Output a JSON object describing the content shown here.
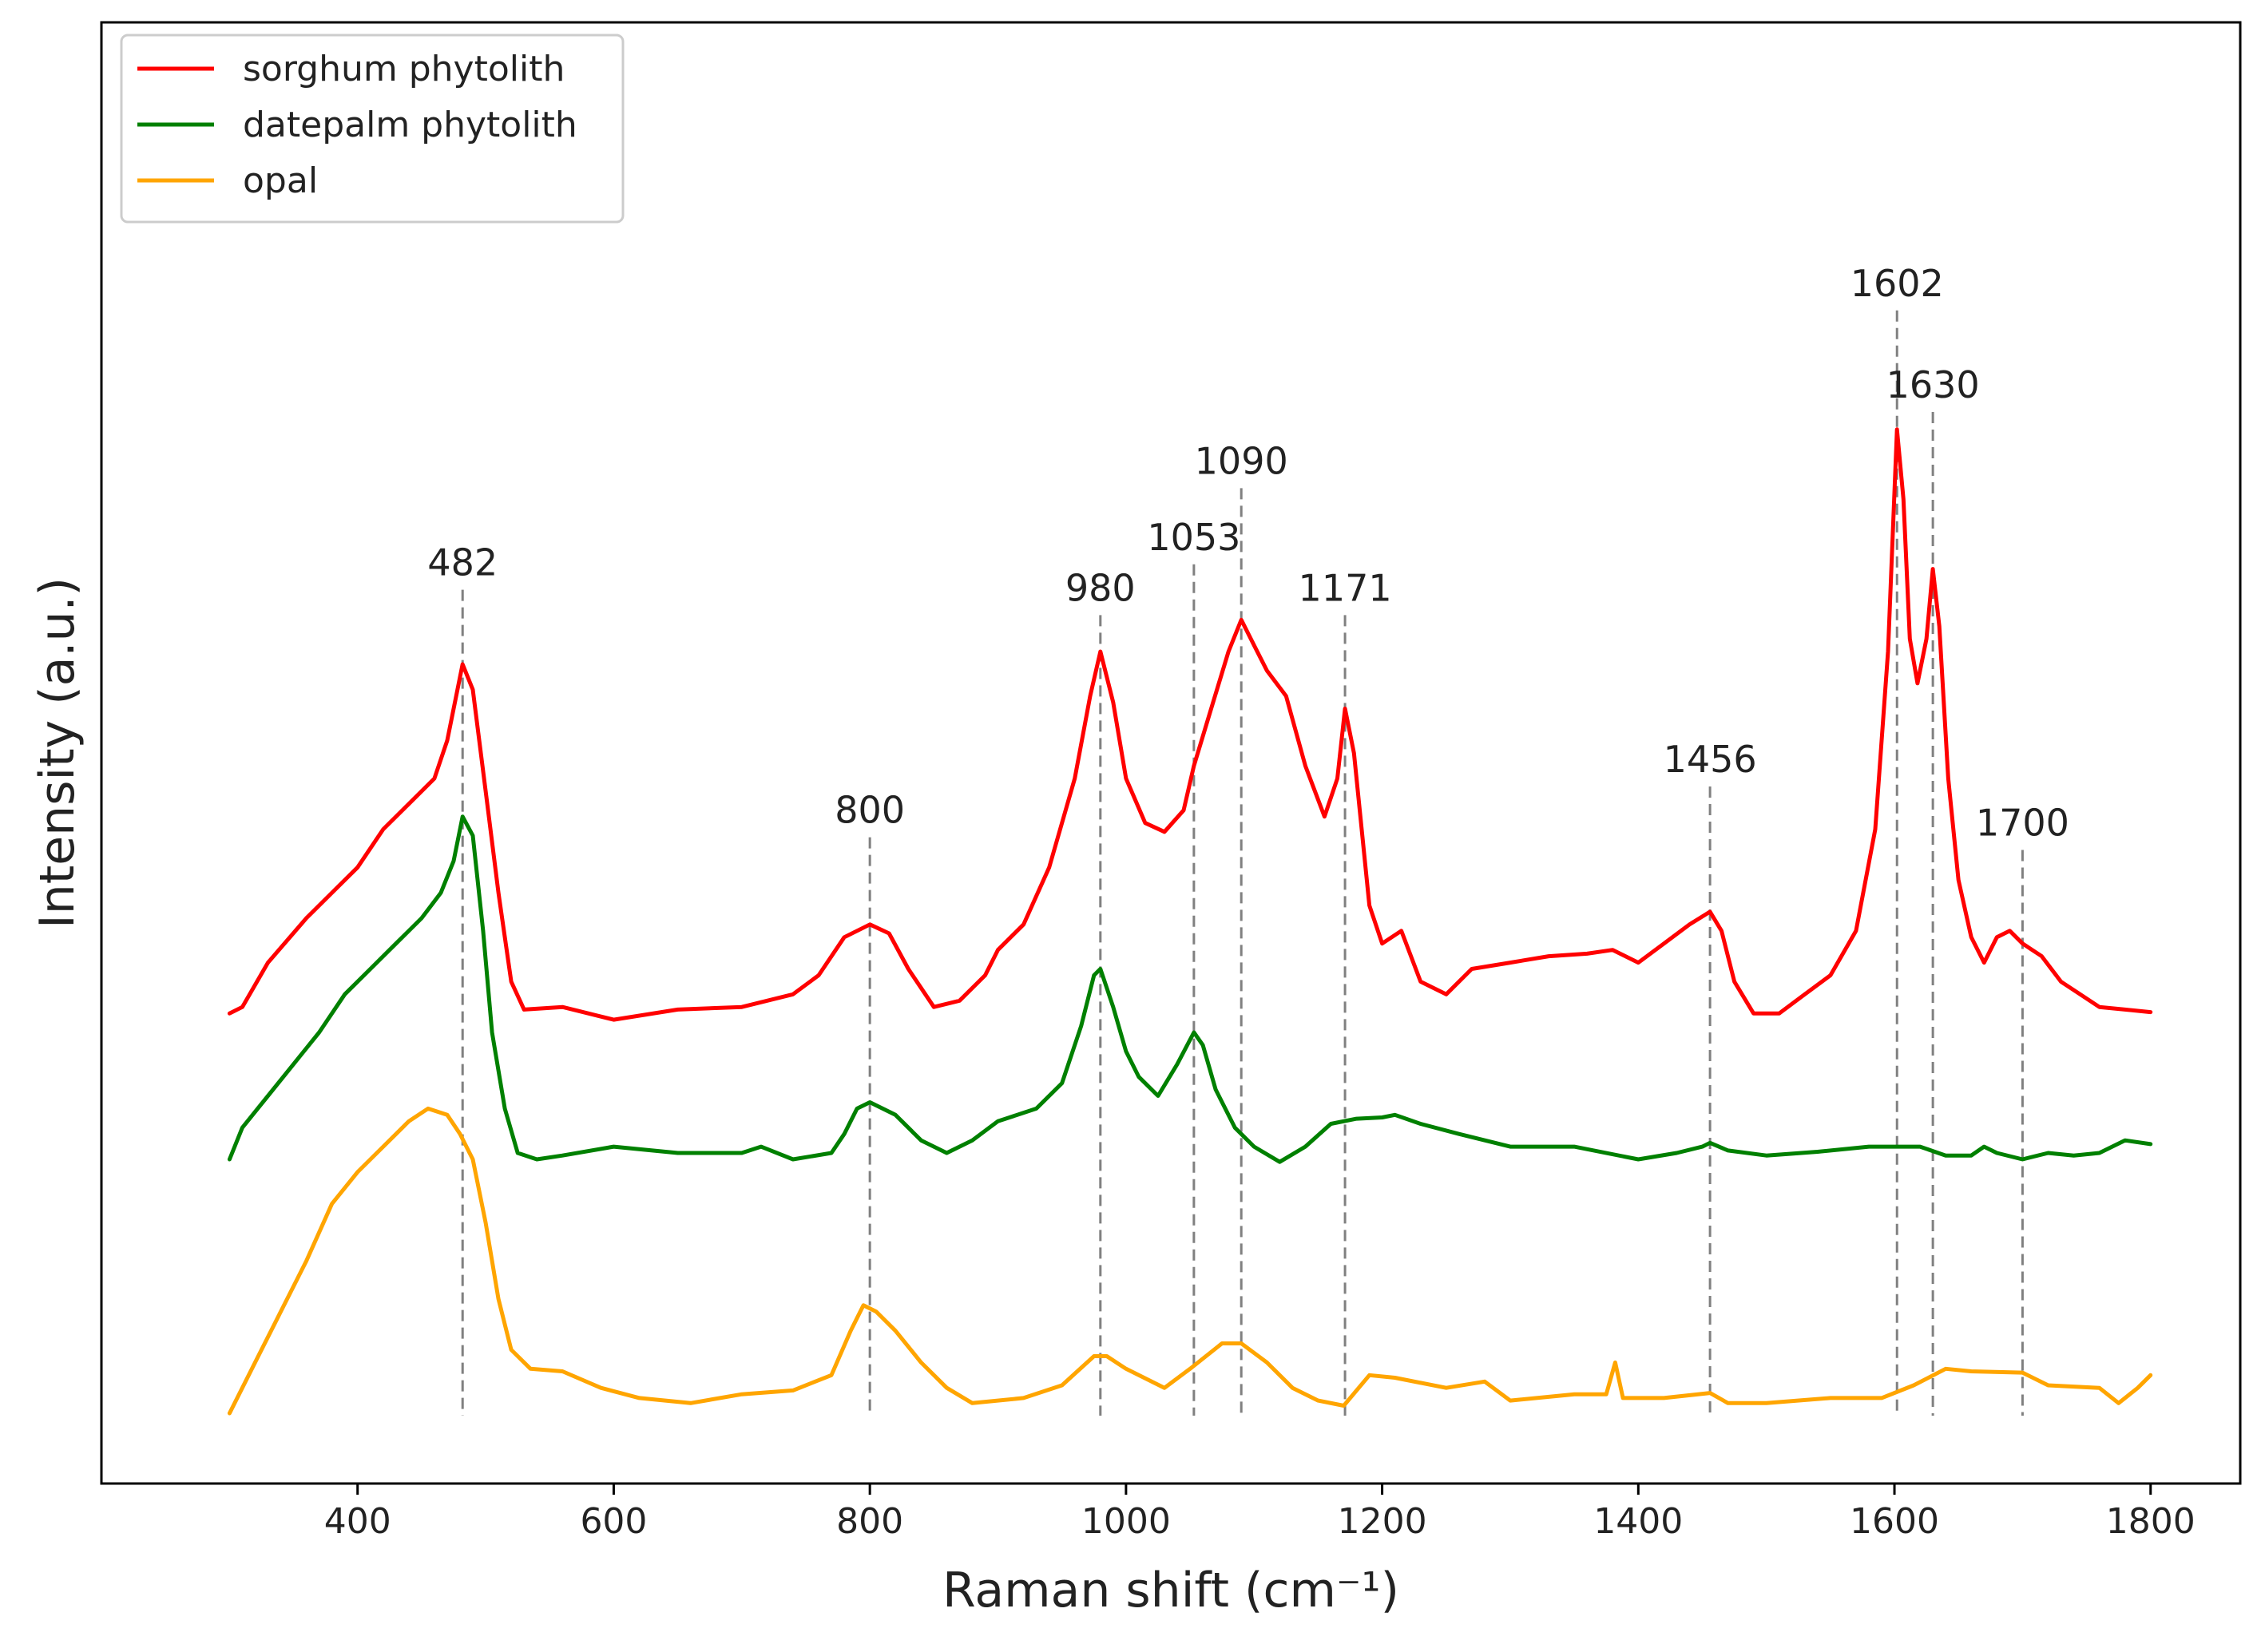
{
  "chart_data": {
    "type": "line",
    "xlabel": "Raman shift (cm⁻¹)",
    "ylabel": "Intensity (a.u.)",
    "xlim": [
      200,
      1870
    ],
    "xticks": [
      400,
      600,
      800,
      1000,
      1200,
      1400,
      1600,
      1800
    ],
    "yticks_shown": false,
    "grid": false,
    "legend_position": "top-left",
    "series": [
      {
        "name": "sorghum phytolith",
        "color": "#ff0000",
        "points": [
          [
            300,
            0.315
          ],
          [
            310,
            0.32
          ],
          [
            330,
            0.355
          ],
          [
            360,
            0.39
          ],
          [
            380,
            0.41
          ],
          [
            400,
            0.43
          ],
          [
            420,
            0.46
          ],
          [
            440,
            0.48
          ],
          [
            460,
            0.5
          ],
          [
            470,
            0.53
          ],
          [
            482,
            0.59
          ],
          [
            490,
            0.57
          ],
          [
            500,
            0.49
          ],
          [
            510,
            0.41
          ],
          [
            520,
            0.34
          ],
          [
            530,
            0.318
          ],
          [
            560,
            0.32
          ],
          [
            600,
            0.31
          ],
          [
            650,
            0.318
          ],
          [
            700,
            0.32
          ],
          [
            740,
            0.33
          ],
          [
            760,
            0.345
          ],
          [
            780,
            0.375
          ],
          [
            800,
            0.385
          ],
          [
            815,
            0.378
          ],
          [
            830,
            0.35
          ],
          [
            850,
            0.32
          ],
          [
            870,
            0.325
          ],
          [
            890,
            0.345
          ],
          [
            900,
            0.365
          ],
          [
            920,
            0.385
          ],
          [
            940,
            0.43
          ],
          [
            960,
            0.5
          ],
          [
            972,
            0.565
          ],
          [
            980,
            0.6
          ],
          [
            990,
            0.56
          ],
          [
            1000,
            0.5
          ],
          [
            1015,
            0.465
          ],
          [
            1030,
            0.458
          ],
          [
            1045,
            0.475
          ],
          [
            1053,
            0.51
          ],
          [
            1065,
            0.55
          ],
          [
            1080,
            0.6
          ],
          [
            1090,
            0.625
          ],
          [
            1100,
            0.605
          ],
          [
            1110,
            0.585
          ],
          [
            1125,
            0.565
          ],
          [
            1140,
            0.51
          ],
          [
            1155,
            0.47
          ],
          [
            1165,
            0.5
          ],
          [
            1171,
            0.555
          ],
          [
            1178,
            0.52
          ],
          [
            1190,
            0.4
          ],
          [
            1200,
            0.37
          ],
          [
            1215,
            0.38
          ],
          [
            1230,
            0.34
          ],
          [
            1250,
            0.33
          ],
          [
            1270,
            0.35
          ],
          [
            1300,
            0.355
          ],
          [
            1330,
            0.36
          ],
          [
            1360,
            0.362
          ],
          [
            1380,
            0.365
          ],
          [
            1400,
            0.355
          ],
          [
            1420,
            0.37
          ],
          [
            1440,
            0.385
          ],
          [
            1456,
            0.395
          ],
          [
            1465,
            0.38
          ],
          [
            1475,
            0.34
          ],
          [
            1490,
            0.315
          ],
          [
            1510,
            0.315
          ],
          [
            1530,
            0.33
          ],
          [
            1550,
            0.345
          ],
          [
            1570,
            0.38
          ],
          [
            1585,
            0.46
          ],
          [
            1595,
            0.6
          ],
          [
            1602,
            0.775
          ],
          [
            1607,
            0.72
          ],
          [
            1612,
            0.61
          ],
          [
            1618,
            0.575
          ],
          [
            1625,
            0.61
          ],
          [
            1630,
            0.665
          ],
          [
            1635,
            0.62
          ],
          [
            1642,
            0.5
          ],
          [
            1650,
            0.42
          ],
          [
            1660,
            0.375
          ],
          [
            1670,
            0.355
          ],
          [
            1680,
            0.375
          ],
          [
            1690,
            0.38
          ],
          [
            1700,
            0.37
          ],
          [
            1715,
            0.36
          ],
          [
            1730,
            0.34
          ],
          [
            1745,
            0.33
          ],
          [
            1760,
            0.32
          ],
          [
            1780,
            0.318
          ],
          [
            1800,
            0.316
          ]
        ]
      },
      {
        "name": "datepalm phytolith",
        "color": "#008000",
        "points": [
          [
            300,
            0.2
          ],
          [
            310,
            0.225
          ],
          [
            330,
            0.25
          ],
          [
            350,
            0.275
          ],
          [
            370,
            0.3
          ],
          [
            390,
            0.33
          ],
          [
            410,
            0.35
          ],
          [
            430,
            0.37
          ],
          [
            450,
            0.39
          ],
          [
            465,
            0.41
          ],
          [
            475,
            0.435
          ],
          [
            482,
            0.47
          ],
          [
            490,
            0.455
          ],
          [
            498,
            0.38
          ],
          [
            505,
            0.3
          ],
          [
            515,
            0.24
          ],
          [
            525,
            0.205
          ],
          [
            540,
            0.2
          ],
          [
            560,
            0.203
          ],
          [
            600,
            0.21
          ],
          [
            650,
            0.205
          ],
          [
            700,
            0.205
          ],
          [
            715,
            0.21
          ],
          [
            740,
            0.2
          ],
          [
            770,
            0.205
          ],
          [
            780,
            0.22
          ],
          [
            790,
            0.24
          ],
          [
            800,
            0.245
          ],
          [
            820,
            0.235
          ],
          [
            840,
            0.215
          ],
          [
            860,
            0.205
          ],
          [
            880,
            0.215
          ],
          [
            900,
            0.23
          ],
          [
            930,
            0.24
          ],
          [
            950,
            0.26
          ],
          [
            965,
            0.305
          ],
          [
            975,
            0.345
          ],
          [
            980,
            0.35
          ],
          [
            990,
            0.32
          ],
          [
            1000,
            0.285
          ],
          [
            1010,
            0.265
          ],
          [
            1025,
            0.25
          ],
          [
            1040,
            0.275
          ],
          [
            1053,
            0.3
          ],
          [
            1060,
            0.29
          ],
          [
            1070,
            0.255
          ],
          [
            1085,
            0.225
          ],
          [
            1100,
            0.21
          ],
          [
            1120,
            0.198
          ],
          [
            1140,
            0.21
          ],
          [
            1160,
            0.228
          ],
          [
            1180,
            0.232
          ],
          [
            1200,
            0.233
          ],
          [
            1210,
            0.235
          ],
          [
            1230,
            0.228
          ],
          [
            1260,
            0.22
          ],
          [
            1300,
            0.21
          ],
          [
            1350,
            0.21
          ],
          [
            1400,
            0.2
          ],
          [
            1430,
            0.205
          ],
          [
            1450,
            0.21
          ],
          [
            1456,
            0.213
          ],
          [
            1470,
            0.207
          ],
          [
            1500,
            0.203
          ],
          [
            1540,
            0.206
          ],
          [
            1580,
            0.21
          ],
          [
            1620,
            0.21
          ],
          [
            1640,
            0.203
          ],
          [
            1660,
            0.203
          ],
          [
            1670,
            0.21
          ],
          [
            1680,
            0.205
          ],
          [
            1700,
            0.2
          ],
          [
            1720,
            0.205
          ],
          [
            1740,
            0.203
          ],
          [
            1760,
            0.205
          ],
          [
            1780,
            0.215
          ],
          [
            1800,
            0.212
          ]
        ]
      },
      {
        "name": "opal",
        "color": "#ffa500",
        "points": [
          [
            300,
            0.0
          ],
          [
            320,
            0.04
          ],
          [
            340,
            0.08
          ],
          [
            360,
            0.12
          ],
          [
            380,
            0.165
          ],
          [
            400,
            0.19
          ],
          [
            420,
            0.21
          ],
          [
            440,
            0.23
          ],
          [
            455,
            0.24
          ],
          [
            470,
            0.235
          ],
          [
            480,
            0.22
          ],
          [
            490,
            0.2
          ],
          [
            500,
            0.15
          ],
          [
            510,
            0.09
          ],
          [
            520,
            0.05
          ],
          [
            535,
            0.035
          ],
          [
            560,
            0.033
          ],
          [
            590,
            0.02
          ],
          [
            620,
            0.012
          ],
          [
            660,
            0.008
          ],
          [
            700,
            0.015
          ],
          [
            740,
            0.018
          ],
          [
            770,
            0.03
          ],
          [
            785,
            0.065
          ],
          [
            795,
            0.085
          ],
          [
            805,
            0.08
          ],
          [
            820,
            0.065
          ],
          [
            840,
            0.04
          ],
          [
            860,
            0.02
          ],
          [
            880,
            0.008
          ],
          [
            920,
            0.012
          ],
          [
            950,
            0.022
          ],
          [
            975,
            0.045
          ],
          [
            985,
            0.045
          ],
          [
            1000,
            0.035
          ],
          [
            1030,
            0.02
          ],
          [
            1050,
            0.035
          ],
          [
            1075,
            0.055
          ],
          [
            1090,
            0.055
          ],
          [
            1110,
            0.04
          ],
          [
            1130,
            0.02
          ],
          [
            1150,
            0.01
          ],
          [
            1170,
            0.006
          ],
          [
            1190,
            0.03
          ],
          [
            1210,
            0.028
          ],
          [
            1250,
            0.02
          ],
          [
            1280,
            0.025
          ],
          [
            1300,
            0.01
          ],
          [
            1350,
            0.015
          ],
          [
            1375,
            0.015
          ],
          [
            1382,
            0.04
          ],
          [
            1388,
            0.012
          ],
          [
            1420,
            0.012
          ],
          [
            1456,
            0.016
          ],
          [
            1470,
            0.008
          ],
          [
            1500,
            0.008
          ],
          [
            1550,
            0.012
          ],
          [
            1590,
            0.012
          ],
          [
            1615,
            0.022
          ],
          [
            1640,
            0.035
          ],
          [
            1660,
            0.033
          ],
          [
            1700,
            0.032
          ],
          [
            1720,
            0.022
          ],
          [
            1760,
            0.02
          ],
          [
            1775,
            0.008
          ],
          [
            1790,
            0.02
          ],
          [
            1800,
            0.03
          ]
        ]
      }
    ],
    "peak_lines": [
      482,
      800,
      980,
      1053,
      1090,
      1171,
      1456,
      1602,
      1630,
      1700
    ],
    "annotations": [
      {
        "text": "482",
        "x": 482,
        "y": 0.66
      },
      {
        "text": "800",
        "x": 800,
        "y": 0.465
      },
      {
        "text": "980",
        "x": 980,
        "y": 0.64
      },
      {
        "text": "1053",
        "x": 1053,
        "y": 0.68
      },
      {
        "text": "1090",
        "x": 1090,
        "y": 0.74
      },
      {
        "text": "1171",
        "x": 1171,
        "y": 0.64
      },
      {
        "text": "1456",
        "x": 1456,
        "y": 0.505
      },
      {
        "text": "1602",
        "x": 1602,
        "y": 0.88
      },
      {
        "text": "1630",
        "x": 1630,
        "y": 0.8
      },
      {
        "text": "1700",
        "x": 1700,
        "y": 0.455
      }
    ]
  }
}
